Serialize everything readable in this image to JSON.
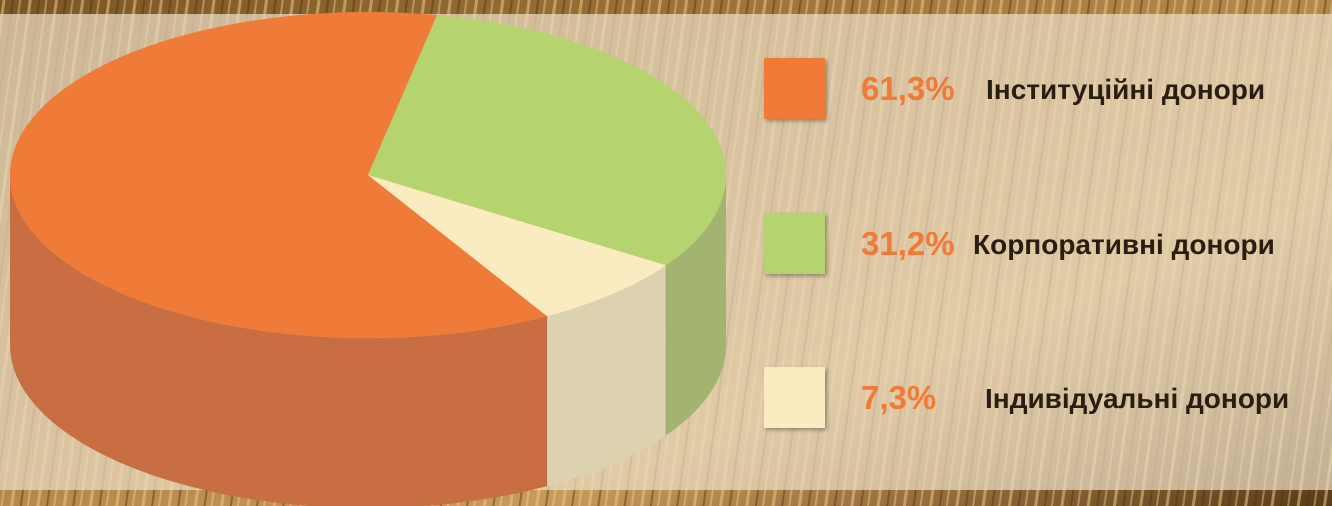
{
  "chart_data": {
    "type": "pie",
    "title": "",
    "slices": [
      {
        "label": "Інституційні донори",
        "value": 61.3,
        "value_label": "61,3%",
        "color": "#F07A37",
        "side_color": "#C96D42"
      },
      {
        "label": "Корпоративні донори",
        "value": 31.2,
        "value_label": "31,2%",
        "color": "#B5D36E",
        "side_color": "#A3B470"
      },
      {
        "label": "Індивідуальні донори",
        "value": 7.3,
        "value_label": "7,3%",
        "color": "#FBEBC0",
        "side_color": "#DCD2B0"
      }
    ],
    "legend_placement": "right",
    "percent_color": "#F07A37",
    "label_color": "#2A1D12"
  },
  "background": {
    "description_color_top": "#6b4a22",
    "panel_color": "#EADCC3"
  }
}
